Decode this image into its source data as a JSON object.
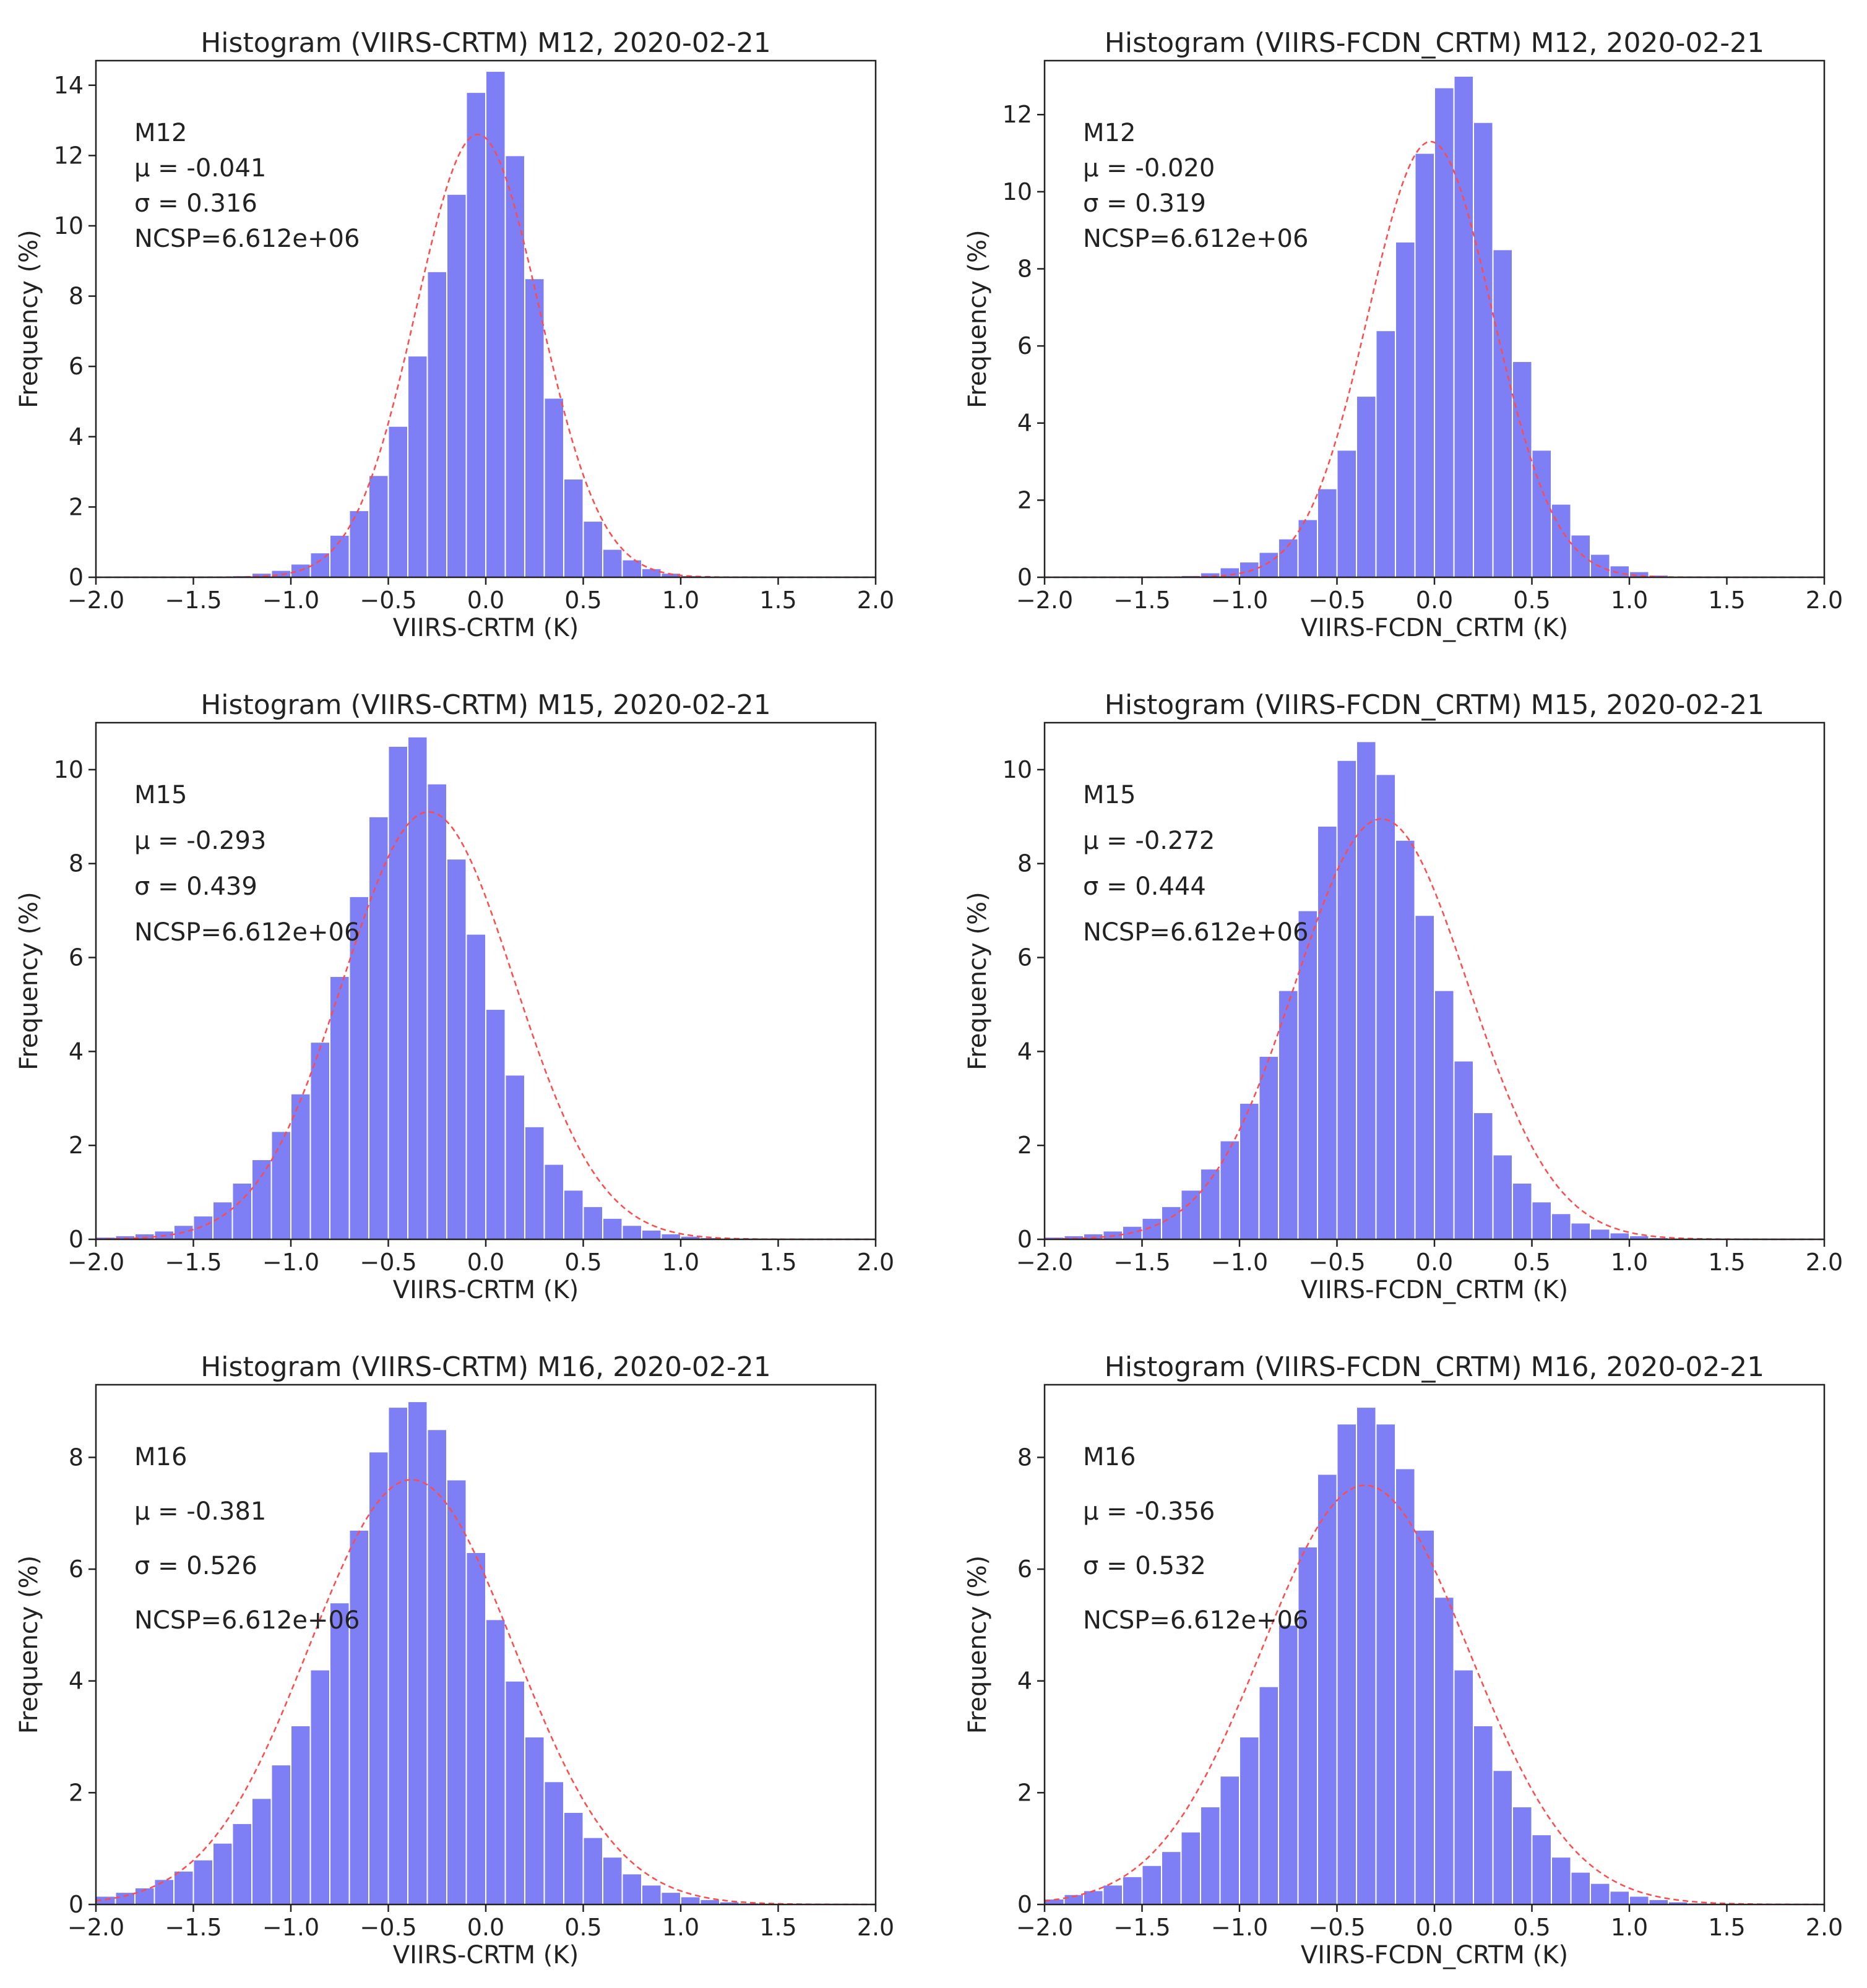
{
  "chart_data": [
    {
      "type": "bar",
      "title": "Histogram (VIIRS-CRTM) M12, 2020-02-21",
      "xlabel": "VIIRS-CRTM (K)",
      "ylabel": "Frequency (%)",
      "xlim": [
        -2.0,
        2.0
      ],
      "ylim": [
        0,
        14.7
      ],
      "xticks": [
        "−2.0",
        "−1.5",
        "−1.0",
        "−0.5",
        "0.0",
        "0.5",
        "1.0",
        "1.5",
        "2.0"
      ],
      "yticks": [
        0,
        2,
        4,
        6,
        8,
        10,
        12,
        14
      ],
      "bins": {
        "start": -2.0,
        "width": 0.1
      },
      "values": [
        0,
        0,
        0,
        0,
        0,
        0,
        0.02,
        0.05,
        0.12,
        0.2,
        0.38,
        0.7,
        1.2,
        1.9,
        2.9,
        4.3,
        6.3,
        8.7,
        10.9,
        13.8,
        14.4,
        12.0,
        8.5,
        5.1,
        2.8,
        1.6,
        0.8,
        0.5,
        0.25,
        0.12,
        0.05,
        0.02,
        0,
        0,
        0,
        0,
        0,
        0,
        0,
        0
      ],
      "fit": {
        "mu": -0.041,
        "sigma": 0.316,
        "peak": 12.6
      },
      "annotations": [
        "M12",
        "μ = -0.041",
        "σ =  0.316",
        "NCSP=6.612e+06"
      ]
    },
    {
      "type": "bar",
      "title": "Histogram (VIIRS-FCDN_CRTM) M12, 2020-02-21",
      "xlabel": "VIIRS-FCDN_CRTM (K)",
      "ylabel": "Frequency (%)",
      "xlim": [
        -2.0,
        2.0
      ],
      "ylim": [
        0,
        13.4
      ],
      "xticks": [
        "−2.0",
        "−1.5",
        "−1.0",
        "−0.5",
        "0.0",
        "0.5",
        "1.0",
        "1.5",
        "2.0"
      ],
      "yticks": [
        0,
        2,
        4,
        6,
        8,
        10,
        12
      ],
      "bins": {
        "start": -2.0,
        "width": 0.1
      },
      "values": [
        0,
        0,
        0,
        0,
        0,
        0,
        0.02,
        0.05,
        0.12,
        0.25,
        0.4,
        0.65,
        1.0,
        1.5,
        2.3,
        3.3,
        4.7,
        6.4,
        8.7,
        11.0,
        12.7,
        13.0,
        11.8,
        8.5,
        5.6,
        3.3,
        1.9,
        1.1,
        0.6,
        0.3,
        0.15,
        0.06,
        0.02,
        0,
        0,
        0,
        0,
        0,
        0,
        0
      ],
      "fit": {
        "mu": -0.02,
        "sigma": 0.319,
        "peak": 11.3
      },
      "annotations": [
        "M12",
        "μ = -0.020",
        "σ =  0.319",
        "NCSP=6.612e+06"
      ]
    },
    {
      "type": "bar",
      "title": "Histogram (VIIRS-CRTM) M15, 2020-02-21",
      "xlabel": "VIIRS-CRTM (K)",
      "ylabel": "Frequency (%)",
      "xlim": [
        -2.0,
        2.0
      ],
      "ylim": [
        0,
        11.0
      ],
      "xticks": [
        "−2.0",
        "−1.5",
        "−1.0",
        "−0.5",
        "0.0",
        "0.5",
        "1.0",
        "1.5",
        "2.0"
      ],
      "yticks": [
        0,
        2,
        4,
        6,
        8,
        10
      ],
      "bins": {
        "start": -2.0,
        "width": 0.1
      },
      "values": [
        0.05,
        0.08,
        0.12,
        0.18,
        0.3,
        0.5,
        0.8,
        1.2,
        1.7,
        2.3,
        3.1,
        4.2,
        5.6,
        7.3,
        9.0,
        10.5,
        10.7,
        9.7,
        8.1,
        6.5,
        4.9,
        3.5,
        2.4,
        1.6,
        1.05,
        0.7,
        0.45,
        0.3,
        0.2,
        0.12,
        0.07,
        0.04,
        0.02,
        0.01,
        0,
        0,
        0,
        0,
        0,
        0
      ],
      "fit": {
        "mu": -0.293,
        "sigma": 0.439,
        "peak": 9.1
      },
      "annotations": [
        "M15",
        "μ = -0.293",
        "σ =  0.439",
        "NCSP=6.612e+06"
      ]
    },
    {
      "type": "bar",
      "title": "Histogram (VIIRS-FCDN_CRTM) M15, 2020-02-21",
      "xlabel": "VIIRS-FCDN_CRTM (K)",
      "ylabel": "Frequency (%)",
      "xlim": [
        -2.0,
        2.0
      ],
      "ylim": [
        0,
        11.0
      ],
      "xticks": [
        "−2.0",
        "−1.5",
        "−1.0",
        "−0.5",
        "0.0",
        "0.5",
        "1.0",
        "1.5",
        "2.0"
      ],
      "yticks": [
        0,
        2,
        4,
        6,
        8,
        10
      ],
      "bins": {
        "start": -2.0,
        "width": 0.1
      },
      "values": [
        0.05,
        0.08,
        0.12,
        0.18,
        0.28,
        0.45,
        0.7,
        1.05,
        1.5,
        2.1,
        2.9,
        3.9,
        5.3,
        7.0,
        8.8,
        10.2,
        10.6,
        9.9,
        8.5,
        6.9,
        5.3,
        3.8,
        2.7,
        1.8,
        1.2,
        0.8,
        0.55,
        0.35,
        0.22,
        0.14,
        0.08,
        0.04,
        0.02,
        0.01,
        0,
        0,
        0,
        0,
        0,
        0
      ],
      "fit": {
        "mu": -0.272,
        "sigma": 0.444,
        "peak": 8.95
      },
      "annotations": [
        "M15",
        "μ = -0.272",
        "σ =  0.444",
        "NCSP=6.612e+06"
      ]
    },
    {
      "type": "bar",
      "title": "Histogram (VIIRS-CRTM) M16, 2020-02-21",
      "xlabel": "VIIRS-CRTM (K)",
      "ylabel": "Frequency (%)",
      "xlim": [
        -2.0,
        2.0
      ],
      "ylim": [
        0,
        9.3
      ],
      "xticks": [
        "−2.0",
        "−1.5",
        "−1.0",
        "−0.5",
        "0.0",
        "0.5",
        "1.0",
        "1.5",
        "2.0"
      ],
      "yticks": [
        0,
        2,
        4,
        6,
        8
      ],
      "bins": {
        "start": -2.0,
        "width": 0.1
      },
      "values": [
        0.15,
        0.22,
        0.3,
        0.45,
        0.6,
        0.8,
        1.1,
        1.45,
        1.9,
        2.5,
        3.2,
        4.2,
        5.4,
        6.7,
        8.1,
        8.9,
        9.0,
        8.5,
        7.6,
        6.3,
        5.1,
        4.0,
        3.0,
        2.2,
        1.65,
        1.2,
        0.85,
        0.55,
        0.35,
        0.22,
        0.14,
        0.09,
        0.05,
        0.03,
        0.02,
        0,
        0,
        0,
        0,
        0
      ],
      "fit": {
        "mu": -0.381,
        "sigma": 0.526,
        "peak": 7.6
      },
      "annotations": [
        "M16",
        "μ = -0.381",
        "σ =  0.526",
        "NCSP=6.612e+06"
      ]
    },
    {
      "type": "bar",
      "title": "Histogram (VIIRS-FCDN_CRTM) M16, 2020-02-21",
      "xlabel": "VIIRS-FCDN_CRTM (K)",
      "ylabel": "Frequency (%)",
      "xlim": [
        -2.0,
        2.0
      ],
      "ylim": [
        0,
        9.3
      ],
      "xticks": [
        "−2.0",
        "−1.5",
        "−1.0",
        "−0.5",
        "0.0",
        "0.5",
        "1.0",
        "1.5",
        "2.0"
      ],
      "yticks": [
        0,
        2,
        4,
        6,
        8
      ],
      "bins": {
        "start": -2.0,
        "width": 0.1
      },
      "values": [
        0.1,
        0.18,
        0.25,
        0.35,
        0.5,
        0.7,
        0.95,
        1.3,
        1.75,
        2.3,
        3.0,
        3.9,
        5.0,
        6.4,
        7.7,
        8.6,
        8.9,
        8.6,
        7.8,
        6.7,
        5.5,
        4.2,
        3.2,
        2.4,
        1.75,
        1.25,
        0.85,
        0.58,
        0.38,
        0.24,
        0.15,
        0.09,
        0.05,
        0.03,
        0.01,
        0,
        0,
        0,
        0,
        0
      ],
      "fit": {
        "mu": -0.356,
        "sigma": 0.532,
        "peak": 7.5
      },
      "annotations": [
        "M16",
        "μ = -0.356",
        "σ =  0.532",
        "NCSP=6.612e+06"
      ]
    }
  ],
  "colors": {
    "bar": "#7f7ff5",
    "bar_edge": "#ffffff",
    "fit": "#ff4a4a",
    "axis": "#222222"
  }
}
